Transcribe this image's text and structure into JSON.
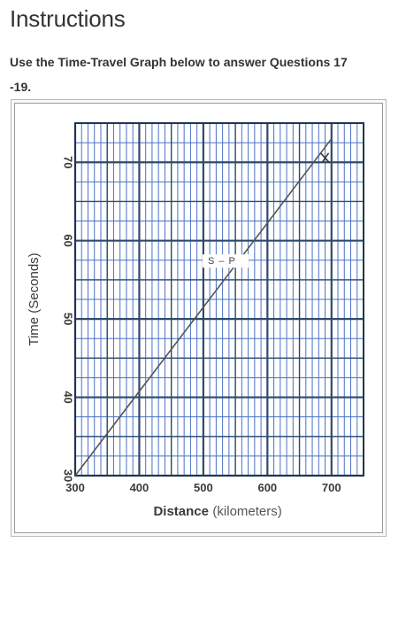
{
  "page": {
    "title": "Instructions",
    "instructions_line1": "Use the Time-Travel Graph below to answer Questions 17",
    "instructions_line2": "-19."
  },
  "chart_data": {
    "type": "line",
    "x": [
      300,
      700
    ],
    "series": [
      {
        "name": "S – P",
        "values": [
          30,
          73
        ]
      }
    ],
    "xlabel_main": "Distance",
    "xlabel_unit": "(kilometers)",
    "ylabel": "Time (Seconds)",
    "xlim": [
      300,
      750
    ],
    "ylim": [
      30,
      75
    ],
    "x_ticks": [
      "300",
      "400",
      "500",
      "600",
      "700"
    ],
    "y_ticks": [
      "30",
      "40",
      "50",
      "60",
      "70"
    ],
    "x_tick_values": [
      300,
      400,
      500,
      600,
      700
    ],
    "y_tick_values": [
      30,
      40,
      50,
      60,
      70
    ],
    "annotation": "S – P",
    "annotation_at": [
      507,
      57
    ],
    "marker_at": [
      690,
      70.5
    ],
    "grid": true,
    "colors": {
      "line": "#555555",
      "grid_major": "#2f4a6b",
      "grid_minor": "#4a72c4"
    }
  }
}
